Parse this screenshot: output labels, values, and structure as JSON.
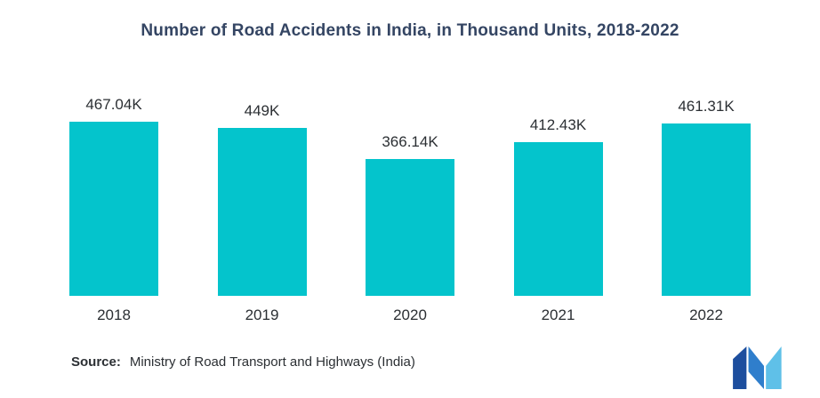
{
  "title": "Number of Road Accidents in India, in Thousand Units, 2018-2022",
  "source": {
    "label": "Source:",
    "text": "Ministry of Road Transport and Highways (India)"
  },
  "logo": {
    "name": "mordor-intelligence-logo",
    "colors": [
      "#1d4e9e",
      "#2f7ecc",
      "#5fc0e8"
    ]
  },
  "colors": {
    "bar": "#04c4cc",
    "title": "#344563",
    "text": "#2b2f33",
    "background": "#ffffff"
  },
  "chart_data": {
    "type": "bar",
    "title": "Number of Road Accidents in India, in Thousand Units, 2018-2022",
    "categories": [
      "2018",
      "2019",
      "2020",
      "2021",
      "2022"
    ],
    "values": [
      467.04,
      449,
      366.14,
      412.43,
      461.31
    ],
    "value_labels": [
      "467.04K",
      "449K",
      "366.14K",
      "412.43K",
      "461.31K"
    ],
    "xlabel": "",
    "ylabel": "",
    "ylim": [
      0,
      500
    ],
    "grid": false,
    "legend": false,
    "bar_color": "#04c4cc"
  }
}
